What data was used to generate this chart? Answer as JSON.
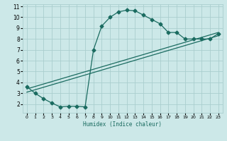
{
  "title": "",
  "xlabel": "Humidex (Indice chaleur)",
  "bg_color": "#cce8e8",
  "line_color": "#1a6b60",
  "grid_color": "#aacece",
  "xlim": [
    -0.5,
    23.5
  ],
  "ylim": [
    1.2,
    11.2
  ],
  "xticks": [
    0,
    1,
    2,
    3,
    4,
    5,
    6,
    7,
    8,
    9,
    10,
    11,
    12,
    13,
    14,
    15,
    16,
    17,
    18,
    19,
    20,
    21,
    22,
    23
  ],
  "yticks": [
    2,
    3,
    4,
    5,
    6,
    7,
    8,
    9,
    10,
    11
  ],
  "curve1_x": [
    0,
    1,
    2,
    3,
    4,
    5,
    6,
    7,
    8,
    9,
    10,
    11,
    12,
    13,
    14,
    15,
    16,
    17,
    18,
    19,
    20,
    21,
    22,
    23
  ],
  "curve1_y": [
    3.6,
    3.0,
    2.5,
    2.1,
    1.75,
    1.8,
    1.8,
    1.75,
    7.0,
    9.2,
    10.0,
    10.5,
    10.65,
    10.6,
    10.2,
    9.8,
    9.4,
    8.6,
    8.6,
    8.0,
    8.0,
    8.0,
    8.0,
    8.5
  ],
  "curve2_x": [
    0,
    23
  ],
  "curve2_y": [
    3.4,
    8.6
  ],
  "curve3_x": [
    0,
    23
  ],
  "curve3_y": [
    3.1,
    8.3
  ],
  "markersize": 2.5
}
